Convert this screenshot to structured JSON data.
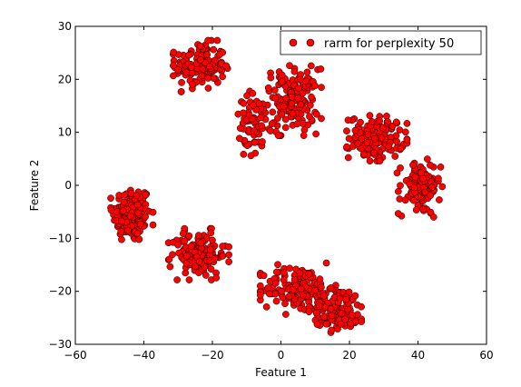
{
  "chart_data": {
    "type": "scatter",
    "title": "",
    "xlabel": "Feature 1",
    "ylabel": "Feature 2",
    "xlim": [
      -60,
      60
    ],
    "ylim": [
      -30,
      30
    ],
    "xticks": [
      -60,
      -40,
      -20,
      0,
      20,
      40,
      60
    ],
    "yticks": [
      -30,
      -20,
      -10,
      0,
      10,
      20,
      30
    ],
    "xtick_labels": [
      "−60",
      "−40",
      "−20",
      "0",
      "20",
      "40",
      "60"
    ],
    "ytick_labels": [
      "−30",
      "−20",
      "−10",
      "0",
      "10",
      "20",
      "30"
    ],
    "grid": false,
    "legend": {
      "position": "top-right"
    },
    "marker_color": "#ff0000",
    "marker_edge": "#000000",
    "series": [
      {
        "name": "rarm for perplexity 50",
        "clusters": [
          {
            "cx": -43.5,
            "cy": -5.5,
            "sx": 2.8,
            "sy": 2.7,
            "n": 160
          },
          {
            "cx": -23.5,
            "cy": 22.5,
            "sx": 3.6,
            "sy": 2.2,
            "n": 140
          },
          {
            "cx": 3.0,
            "cy": 16.0,
            "sx": 4.0,
            "sy": 3.0,
            "n": 150
          },
          {
            "cx": -8.0,
            "cy": 11.0,
            "sx": 2.8,
            "sy": 3.2,
            "n": 60
          },
          {
            "cx": 28.0,
            "cy": 9.0,
            "sx": 4.0,
            "sy": 2.0,
            "n": 140
          },
          {
            "cx": 40.5,
            "cy": -0.5,
            "sx": 3.0,
            "sy": 2.5,
            "n": 110
          },
          {
            "cx": -24.0,
            "cy": -13.0,
            "sx": 4.0,
            "sy": 2.2,
            "n": 130
          },
          {
            "cx": 5.0,
            "cy": -19.5,
            "sx": 5.0,
            "sy": 2.2,
            "n": 150
          },
          {
            "cx": 17.0,
            "cy": -23.5,
            "sx": 4.0,
            "sy": 2.0,
            "n": 120
          }
        ]
      }
    ]
  }
}
